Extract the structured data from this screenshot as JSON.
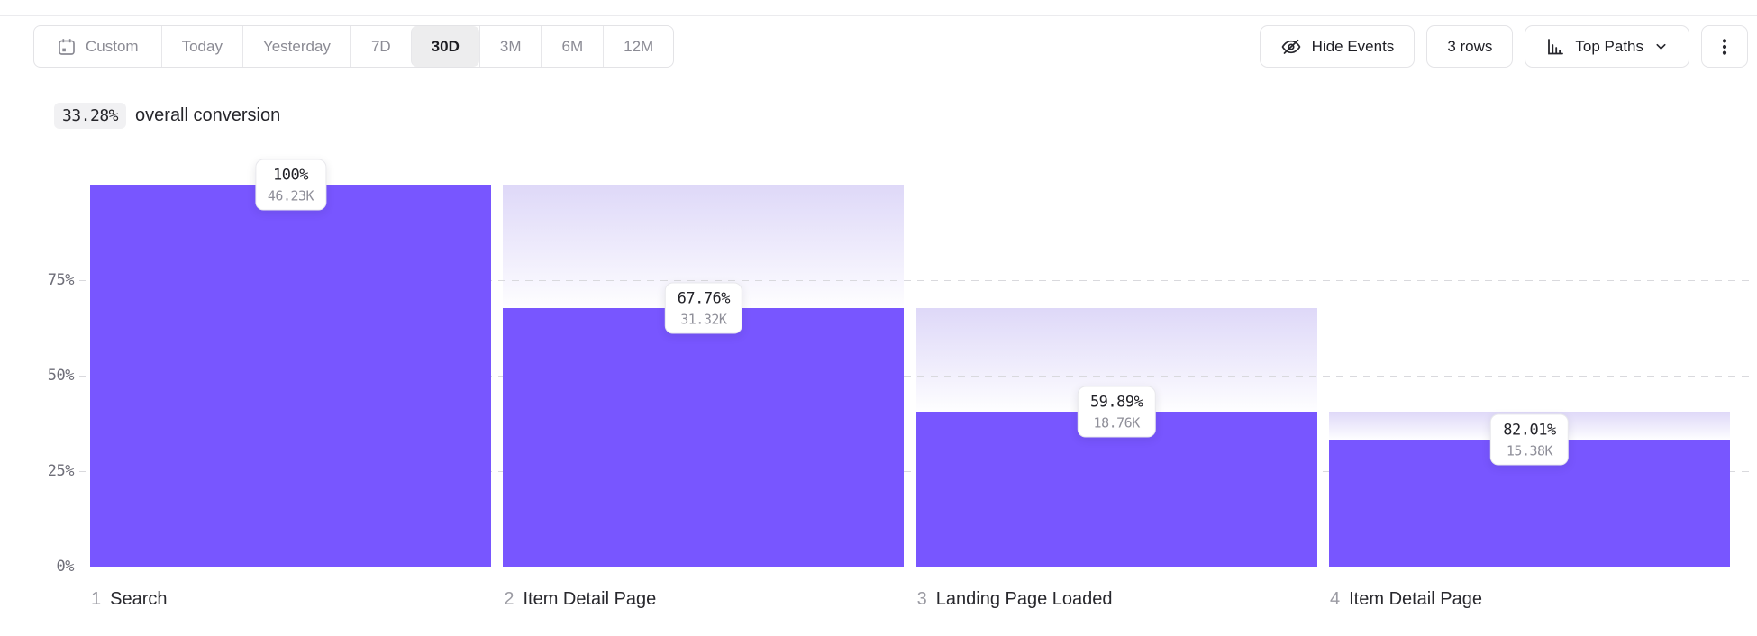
{
  "toolbar": {
    "date_ranges": [
      {
        "label": "Custom",
        "selected": false,
        "icon": "calendar-icon"
      },
      {
        "label": "Today",
        "selected": false
      },
      {
        "label": "Yesterday",
        "selected": false
      },
      {
        "label": "7D",
        "selected": false
      },
      {
        "label": "30D",
        "selected": true
      },
      {
        "label": "3M",
        "selected": false
      },
      {
        "label": "6M",
        "selected": false
      },
      {
        "label": "12M",
        "selected": false
      }
    ],
    "hide_events_label": "Hide Events",
    "rows_label": "3 rows",
    "top_paths_label": "Top Paths",
    "icons": {
      "hide_events": "eye-off-icon",
      "top_paths": "bar-chart-icon",
      "top_paths_expand": "chevron-down-icon",
      "more": "kebab-menu-icon"
    }
  },
  "summary": {
    "conversion_value": "33.28%",
    "conversion_label": "overall conversion"
  },
  "chart_data": {
    "type": "funnel",
    "title": "33.28% overall conversion",
    "ylim": [
      0,
      100
    ],
    "y_ticks": [
      {
        "label": "75%",
        "value": 75
      },
      {
        "label": "50%",
        "value": 50
      },
      {
        "label": "25%",
        "value": 25
      },
      {
        "label": "0%",
        "value": 0
      }
    ],
    "gridline_values": [
      75,
      50,
      25
    ],
    "grid": "dashed",
    "steps": [
      {
        "index": "1",
        "name": "Search",
        "step_conversion": "100%",
        "count": "46.23K",
        "overall_pct": 100
      },
      {
        "index": "2",
        "name": "Item Detail Page",
        "step_conversion": "67.76%",
        "count": "31.32K",
        "overall_pct": 67.75
      },
      {
        "index": "3",
        "name": "Landing Page Loaded",
        "step_conversion": "59.89%",
        "count": "18.76K",
        "overall_pct": 40.58
      },
      {
        "index": "4",
        "name": "Item Detail Page",
        "step_conversion": "82.01%",
        "count": "15.38K",
        "overall_pct": 33.27
      }
    ],
    "colors": {
      "bar": "#7856FF",
      "dropoff_gradient_top": "#DED8F8",
      "dropoff_gradient_bottom": "#FEFEFF"
    }
  }
}
